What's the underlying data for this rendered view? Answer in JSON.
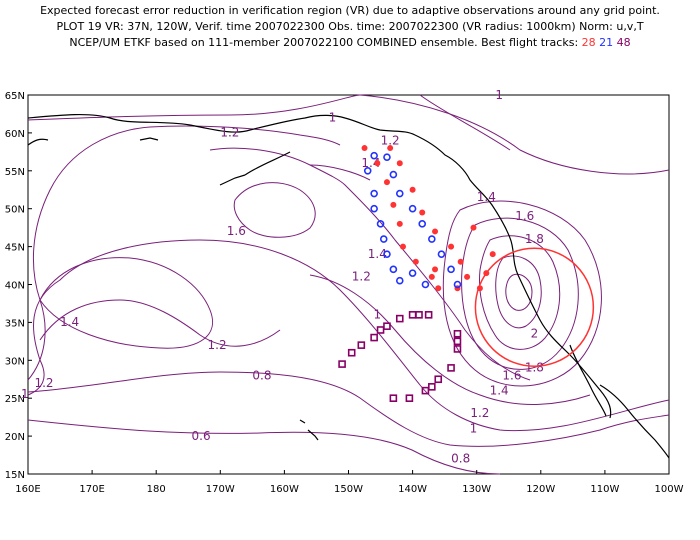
{
  "title": {
    "line1": "Expected forecast error reduction in verification region (VR) due to adaptive observations around any grid point.",
    "line2": "PLOT 19 VR: 37N, 120W, Verif. time 2007022300 Obs. time: 2007022300 (VR radius: 1000km) Norm: u,v,T",
    "line3_prefix": "NCEP/UM ETKF based on 111-member 2007022100 COMBINED ensemble.  Best flight tracks:",
    "track_28": "28",
    "track_21": "21",
    "track_48": "48"
  },
  "axes": {
    "lat_labels": [
      "65N",
      "60N",
      "55N",
      "50N",
      "45N",
      "40N",
      "35N",
      "30N",
      "25N",
      "20N",
      "15N"
    ],
    "lon_labels": [
      "160E",
      "170E",
      "180",
      "170W",
      "160W",
      "150W",
      "140W",
      "130W",
      "120W",
      "110W",
      "100W"
    ]
  },
  "colors": {
    "contour": "#7a1f7a",
    "track_28": "#ff3333",
    "track_21": "#2233ff",
    "track_48": "#880066",
    "verification_circle": "#ff3333",
    "coast": "#000000"
  },
  "contour_labels": [
    {
      "text": "1.2",
      "lon": -168.5,
      "lat": 59.5
    },
    {
      "text": "1",
      "lon": -152.5,
      "lat": 61.5
    },
    {
      "text": "1.2",
      "lon": -143.5,
      "lat": 58.5
    },
    {
      "text": "1.4",
      "lon": -146.5,
      "lat": 55.5
    },
    {
      "text": "1",
      "lon": -126.5,
      "lat": 64.5
    },
    {
      "text": "1.6",
      "lon": -167.5,
      "lat": 46.5
    },
    {
      "text": "1.4",
      "lon": -145.5,
      "lat": 43.5
    },
    {
      "text": "1.4",
      "lon": -128.5,
      "lat": 51.0
    },
    {
      "text": "1.6",
      "lon": -122.5,
      "lat": 48.5
    },
    {
      "text": "1.8",
      "lon": -121.0,
      "lat": 45.5
    },
    {
      "text": "1.2",
      "lon": -148.0,
      "lat": 40.5
    },
    {
      "text": "1.4",
      "lon": -193.5,
      "lat": 34.5
    },
    {
      "text": "1.2",
      "lon": -170.5,
      "lat": 31.5
    },
    {
      "text": "1",
      "lon": -145.5,
      "lat": 35.5
    },
    {
      "text": "2",
      "lon": -121.0,
      "lat": 33.0
    },
    {
      "text": "1.8",
      "lon": -121.0,
      "lat": 28.5
    },
    {
      "text": "1.6",
      "lon": -124.5,
      "lat": 27.5
    },
    {
      "text": "1.4",
      "lon": -126.5,
      "lat": 25.5
    },
    {
      "text": "1.2",
      "lon": -197.5,
      "lat": 26.5
    },
    {
      "text": "1",
      "lon": -200.5,
      "lat": 25.0
    },
    {
      "text": "0.8",
      "lon": -163.5,
      "lat": 27.5
    },
    {
      "text": "1.2",
      "lon": -129.5,
      "lat": 22.5
    },
    {
      "text": "1",
      "lon": -130.5,
      "lat": 20.5
    },
    {
      "text": "0.6",
      "lon": -173.0,
      "lat": 19.5
    },
    {
      "text": "0.8",
      "lon": -132.5,
      "lat": 16.5
    }
  ],
  "track_points": {
    "track_28": [
      [
        -147.5,
        58
      ],
      [
        -143.5,
        58
      ],
      [
        -145.5,
        56
      ],
      [
        -142,
        56
      ],
      [
        -144,
        53.5
      ],
      [
        -140,
        52.5
      ],
      [
        -143,
        50.5
      ],
      [
        -138.5,
        49.5
      ],
      [
        -142,
        48
      ],
      [
        -136.5,
        47
      ],
      [
        -141.5,
        45
      ],
      [
        -134,
        45
      ],
      [
        -139.5,
        43
      ],
      [
        -132.5,
        43
      ],
      [
        -137,
        41
      ],
      [
        -131.5,
        41
      ],
      [
        -136,
        39.5
      ],
      [
        -133,
        39.5
      ],
      [
        -127.5,
        44
      ],
      [
        -128.5,
        41.5
      ],
      [
        -129.5,
        39.5
      ],
      [
        -130.5,
        47.5
      ],
      [
        -136.5,
        42
      ]
    ],
    "track_21": [
      [
        -146,
        57
      ],
      [
        -144,
        56.8
      ],
      [
        -147,
        55
      ],
      [
        -143,
        54.5
      ],
      [
        -146,
        52
      ],
      [
        -142,
        52
      ],
      [
        -146,
        50
      ],
      [
        -140,
        50
      ],
      [
        -145,
        48
      ],
      [
        -138.5,
        48
      ],
      [
        -144.5,
        46
      ],
      [
        -137,
        46
      ],
      [
        -144,
        44
      ],
      [
        -135.5,
        44
      ],
      [
        -143,
        42
      ],
      [
        -134,
        42
      ],
      [
        -142,
        40.5
      ],
      [
        -138,
        40
      ],
      [
        -133,
        40
      ],
      [
        -140,
        41.5
      ]
    ],
    "track_48": [
      [
        -151,
        29.5
      ],
      [
        -149.5,
        31
      ],
      [
        -148,
        32
      ],
      [
        -146,
        33
      ],
      [
        -145,
        34
      ],
      [
        -144,
        34.5
      ],
      [
        -142,
        35.5
      ],
      [
        -140,
        36
      ],
      [
        -139,
        36
      ],
      [
        -137.5,
        36
      ],
      [
        -133,
        33.5
      ],
      [
        -133,
        32.5
      ],
      [
        -133,
        31.5
      ],
      [
        -134,
        29
      ],
      [
        -136,
        27.5
      ],
      [
        -137,
        26.5
      ],
      [
        -138,
        26
      ],
      [
        -140.5,
        25
      ],
      [
        -143,
        25
      ]
    ]
  },
  "verification_region": {
    "lon": -121.0,
    "lat": 37.0,
    "radius_deg": 9.2
  }
}
